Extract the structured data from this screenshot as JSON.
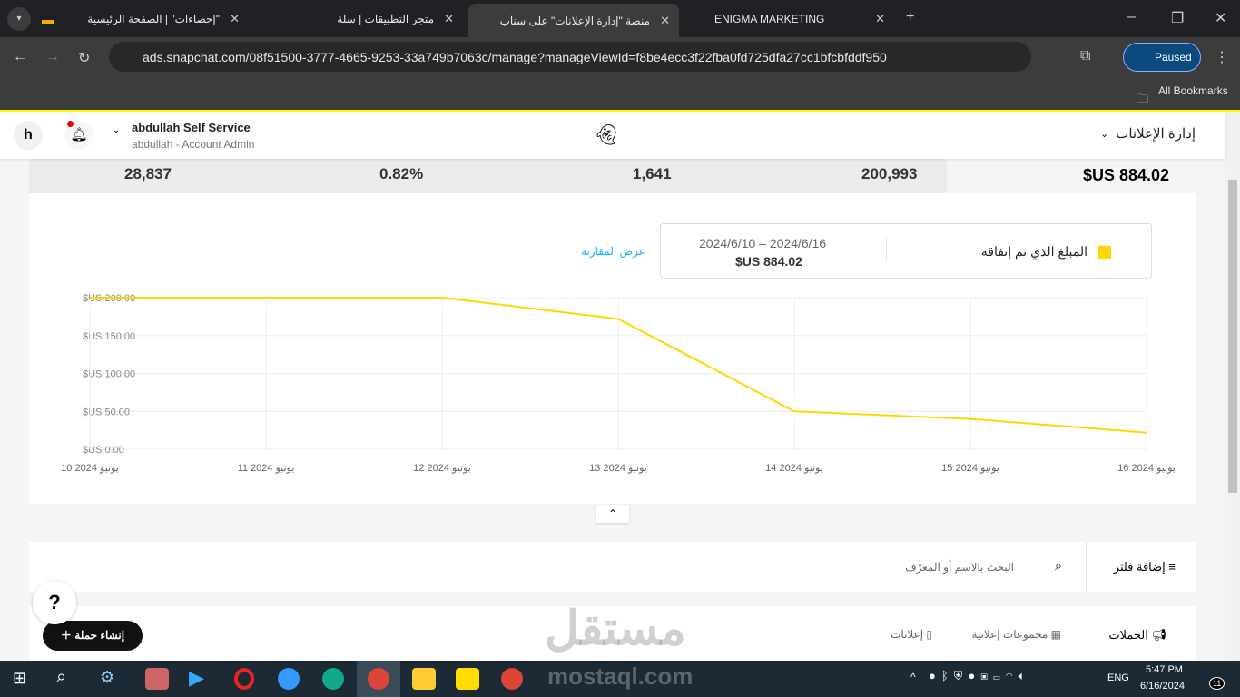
{
  "browser": {
    "tabs": [
      {
        "title": "\"إحصاءات\" | الصفحة الرئيسية"
      },
      {
        "title": "متجر التطبيقات | سلة"
      },
      {
        "title": "منصة \"إدارة الإعلانات\" على سناب"
      },
      {
        "title": "ENIGMA MARKETING"
      }
    ],
    "url": "ads.snapchat.com/08f51500-3777-4665-9253-33a749b7063c/manage?manageViewId=f8be4ecc3f22fba0fd725dfa27cc1bfcbfddf950",
    "profile": "Paused",
    "bookmarks": "All Bookmarks"
  },
  "header": {
    "avatar": "h",
    "account_name": "abdullah Self Service",
    "account_role": "abdullah - Account Admin",
    "menu": "إدارة الإعلانات"
  },
  "stats": [
    "28,837",
    "0.82%",
    "1,641",
    "200,993",
    "$US 884.02"
  ],
  "legend": {
    "metric": "المبلغ الذي تم إنفاقه",
    "range": "2024/6/10 – 2024/6/16",
    "total": "$US 884.02",
    "compare": "عرض المقارنة",
    "color": "#ffd600"
  },
  "chart_data": {
    "type": "line",
    "categories": [
      "10 يونيو 2024",
      "11 يونيو 2024",
      "12 يونيو 2024",
      "13 يونيو 2024",
      "14 يونيو 2024",
      "15 يونيو 2024",
      "16 يونيو 2024"
    ],
    "series": [
      {
        "name": "المبلغ الذي تم إنفاقه",
        "values": [
          200,
          200,
          200,
          172,
          50,
          40,
          22.02
        ]
      }
    ],
    "yticks": [
      "$US 0.00",
      "$US 50.00",
      "$US 100.00",
      "$US 150.00",
      "$US 200.00"
    ],
    "ylim": [
      0,
      200
    ],
    "grid": true
  },
  "filter": {
    "add_filter": "إضافة فلتر",
    "search_placeholder": "البحث بالاسم أو المعرّف"
  },
  "tabs": {
    "campaigns": "الحملات",
    "adsets": "مجموعات إعلانية",
    "ads": "إعلانات",
    "create": "إنشاء حملة"
  },
  "watermark": {
    "ar": "مستقل",
    "en": "mostaql.com"
  },
  "taskbar": {
    "lang": "ENG",
    "time": "5:47 PM",
    "date": "6/16/2024",
    "notif": "11"
  }
}
